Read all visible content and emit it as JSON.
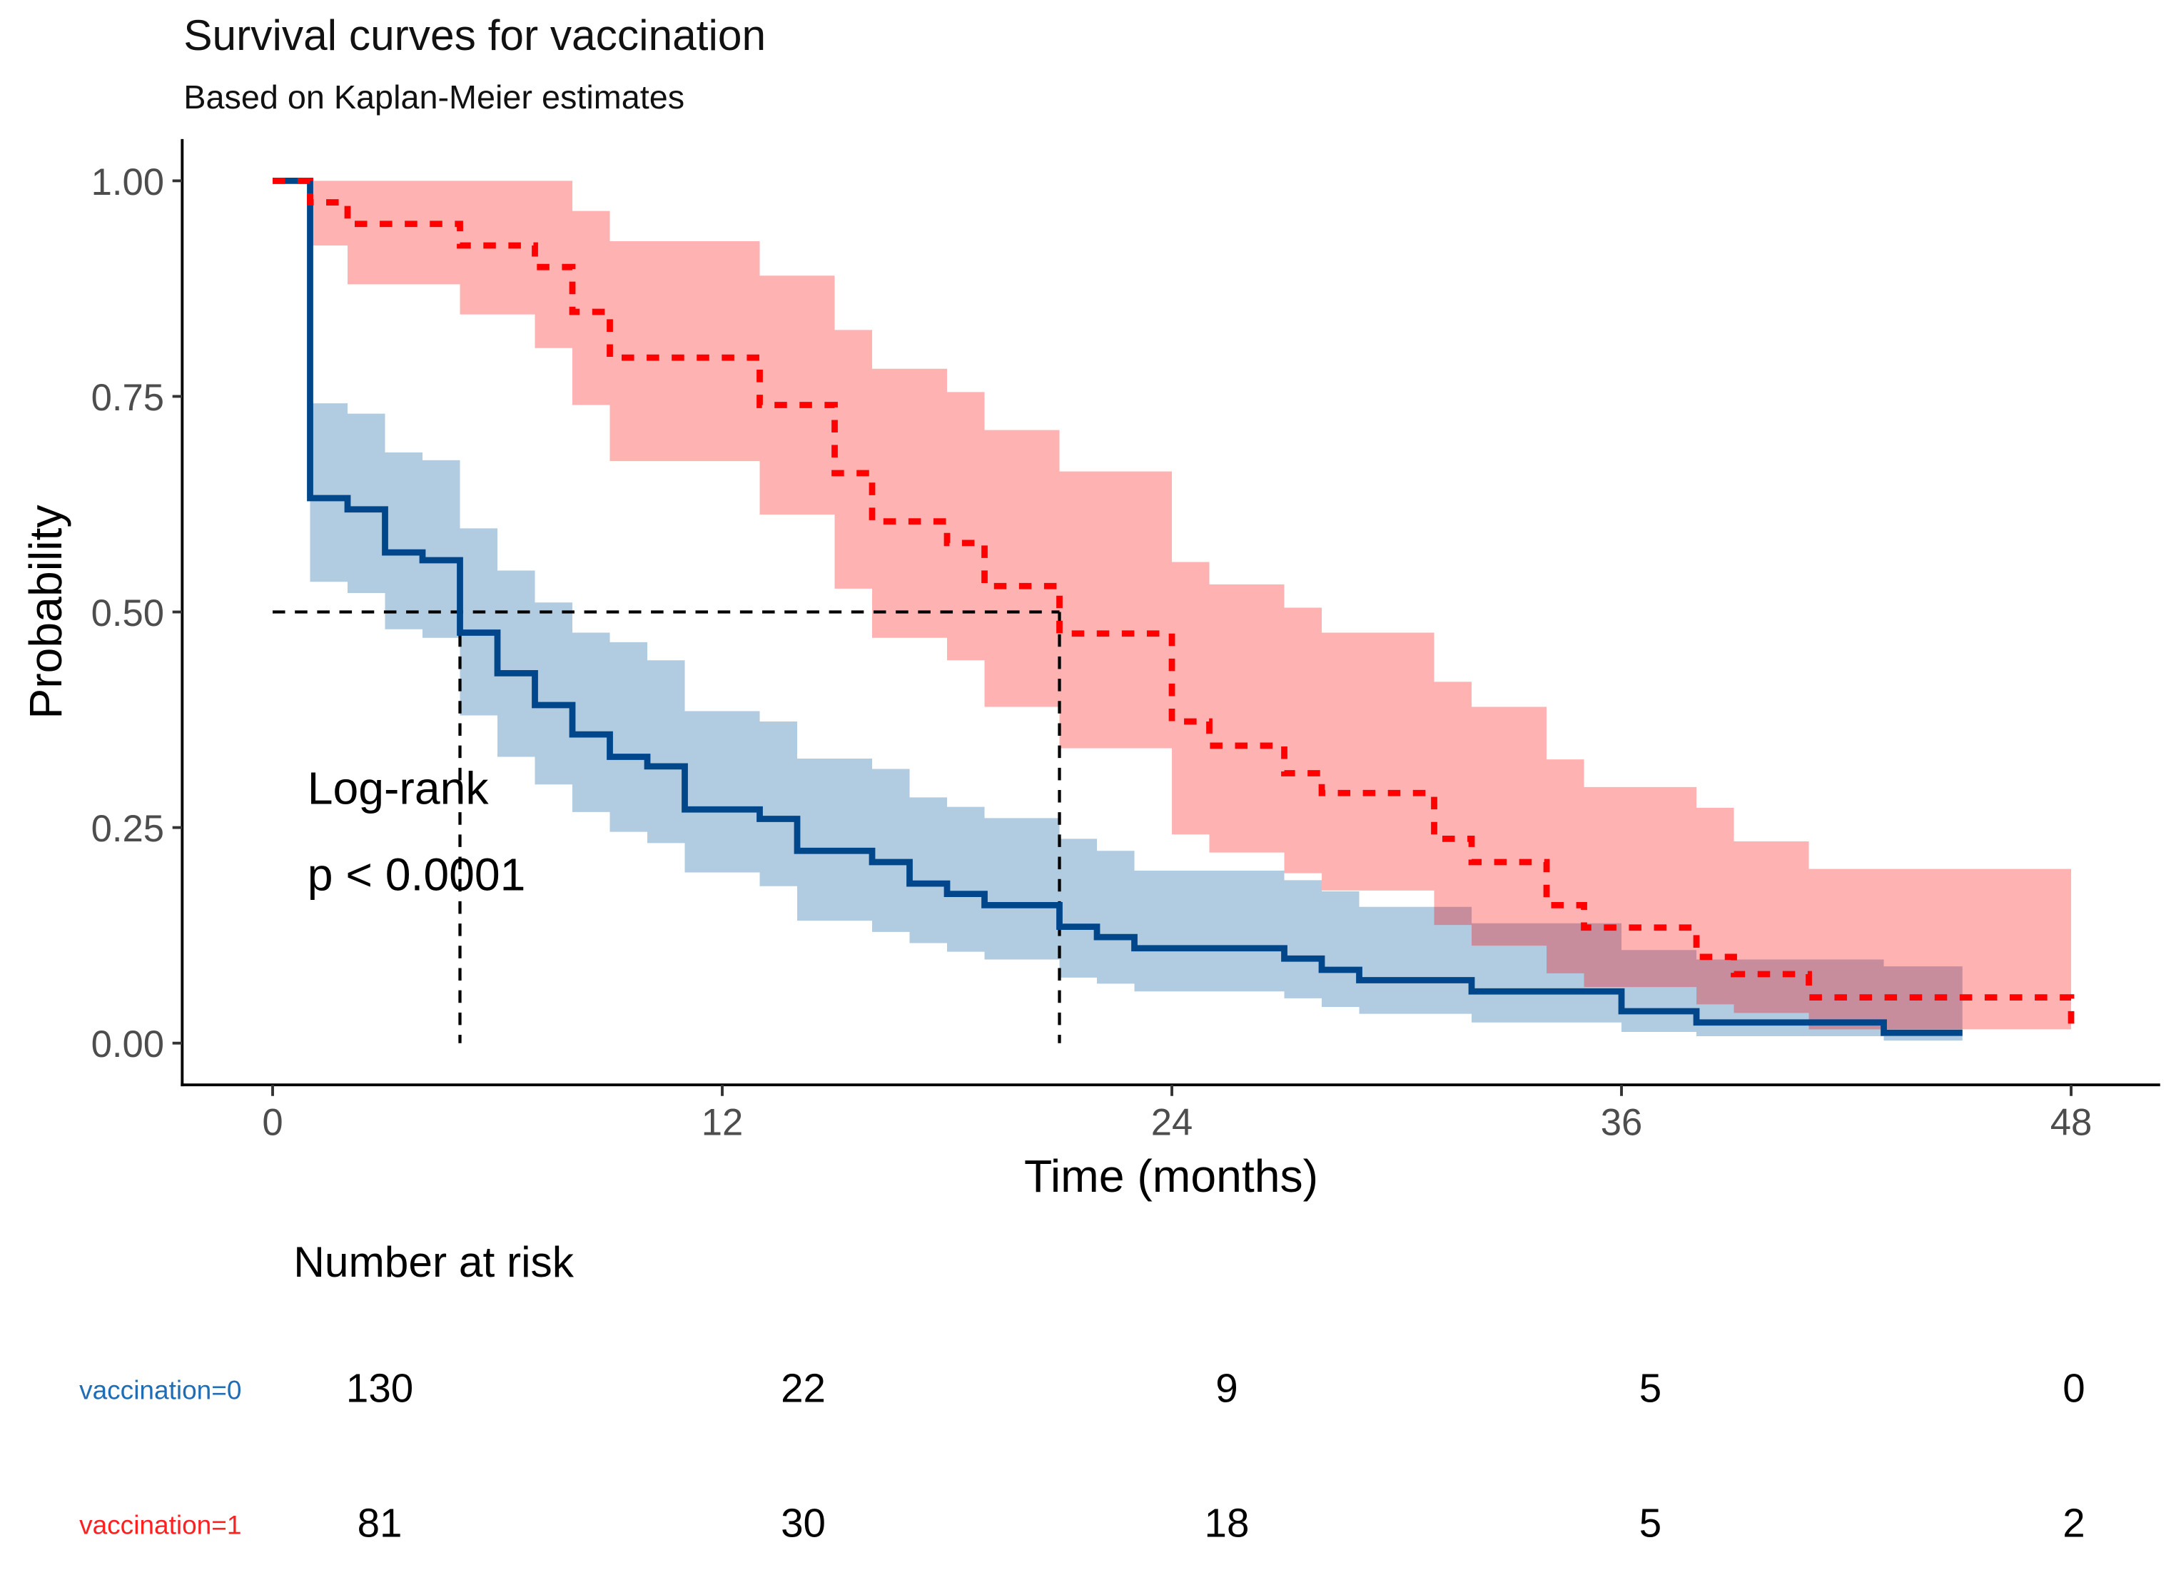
{
  "chart_data": {
    "type": "line",
    "subtype": "kaplan-meier step",
    "title": "Survival curves for vaccination",
    "subtitle": "Based on Kaplan-Meier estimates",
    "xlabel": "Time (months)",
    "ylabel": "Probability",
    "xlim": [
      0,
      48
    ],
    "ylim": [
      0,
      1
    ],
    "x_ticks": [
      "0",
      "12",
      "24",
      "36",
      "48"
    ],
    "x_tick_values": [
      0,
      12,
      24,
      36,
      48
    ],
    "y_ticks": [
      "0.00",
      "0.25",
      "0.50",
      "0.75",
      "1.00"
    ],
    "y_tick_values": [
      0,
      0.25,
      0.5,
      0.75,
      1
    ],
    "grid": false,
    "annotation": {
      "line1": "Log-rank",
      "line2": "p < 0.0001"
    },
    "median_line": {
      "y": 0.5,
      "medians": [
        5,
        21
      ]
    },
    "series": [
      {
        "name": "vaccination=0",
        "color": "#00468B",
        "fill": "#4682B4",
        "dash": "solid",
        "times": [
          0,
          1,
          2,
          3,
          4,
          5,
          6,
          7,
          8,
          9,
          10,
          11,
          13,
          14,
          16,
          17,
          18,
          19,
          21,
          22,
          23,
          27,
          28,
          29,
          32,
          36,
          38,
          43
        ],
        "survival": [
          1,
          0.632,
          0.619,
          0.569,
          0.56,
          0.476,
          0.429,
          0.392,
          0.358,
          0.332,
          0.321,
          0.271,
          0.26,
          0.223,
          0.21,
          0.185,
          0.173,
          0.16,
          0.135,
          0.123,
          0.11,
          0.098,
          0.085,
          0.073,
          0.06,
          0.037,
          0.024,
          0.012
        ],
        "end_time": 45.1,
        "ci_times": [
          1,
          2,
          3,
          4,
          5,
          6,
          7,
          8,
          9,
          10,
          11,
          13,
          14,
          16,
          17,
          18,
          19,
          21,
          22,
          23,
          27,
          28,
          29,
          32,
          36,
          38,
          43
        ],
        "ci_upper": [
          0.742,
          0.73,
          0.685,
          0.676,
          0.597,
          0.548,
          0.511,
          0.476,
          0.465,
          0.444,
          0.385,
          0.373,
          0.33,
          0.318,
          0.285,
          0.274,
          0.261,
          0.237,
          0.223,
          0.2,
          0.189,
          0.176,
          0.158,
          0.139,
          0.108,
          0.097,
          0.089
        ],
        "ci_lower": [
          0.535,
          0.522,
          0.48,
          0.47,
          0.38,
          0.332,
          0.3,
          0.268,
          0.245,
          0.232,
          0.198,
          0.182,
          0.142,
          0.129,
          0.116,
          0.106,
          0.097,
          0.076,
          0.069,
          0.06,
          0.052,
          0.042,
          0.034,
          0.024,
          0.013,
          0.008,
          0.003
        ]
      },
      {
        "name": "vaccination=1",
        "color": "#FF0000",
        "fill": "#FF0000",
        "dash": "dashed",
        "times": [
          0,
          1,
          2,
          5,
          7,
          8,
          9,
          13,
          15,
          16,
          18,
          19,
          21,
          24,
          25,
          27,
          28,
          31,
          32,
          34,
          35,
          38,
          39,
          41
        ],
        "survival": [
          1,
          0.975,
          0.95,
          0.925,
          0.9,
          0.848,
          0.795,
          0.74,
          0.661,
          0.605,
          0.58,
          0.53,
          0.475,
          0.373,
          0.345,
          0.313,
          0.29,
          0.237,
          0.21,
          0.16,
          0.134,
          0.1,
          0.08,
          0.053
        ],
        "end_time": 48,
        "final_drop": 0.015,
        "ci_times": [
          1,
          2,
          5,
          7,
          8,
          9,
          13,
          15,
          16,
          18,
          19,
          21,
          24,
          25,
          27,
          28,
          31,
          32,
          34,
          35,
          38,
          39,
          41
        ],
        "ci_upper": [
          1,
          1,
          1,
          1,
          0.965,
          0.93,
          0.89,
          0.827,
          0.782,
          0.755,
          0.711,
          0.663,
          0.558,
          0.532,
          0.505,
          0.476,
          0.419,
          0.39,
          0.329,
          0.297,
          0.273,
          0.234,
          0.202
        ],
        "ci_lower": [
          0.925,
          0.88,
          0.845,
          0.806,
          0.74,
          0.675,
          0.613,
          0.527,
          0.47,
          0.444,
          0.39,
          0.342,
          0.242,
          0.221,
          0.197,
          0.177,
          0.137,
          0.113,
          0.081,
          0.065,
          0.045,
          0.035,
          0.016
        ]
      }
    ],
    "risk_table": {
      "title": "Number at risk",
      "times": [
        0,
        12,
        24,
        36,
        48
      ],
      "rows": [
        {
          "label": "vaccination=0",
          "color": "#1F6DB5",
          "values": [
            "130",
            "22",
            "9",
            "5",
            "0"
          ]
        },
        {
          "label": "vaccination=1",
          "color": "#FF2020",
          "values": [
            "81",
            "30",
            "18",
            "5",
            "2"
          ]
        }
      ]
    }
  }
}
